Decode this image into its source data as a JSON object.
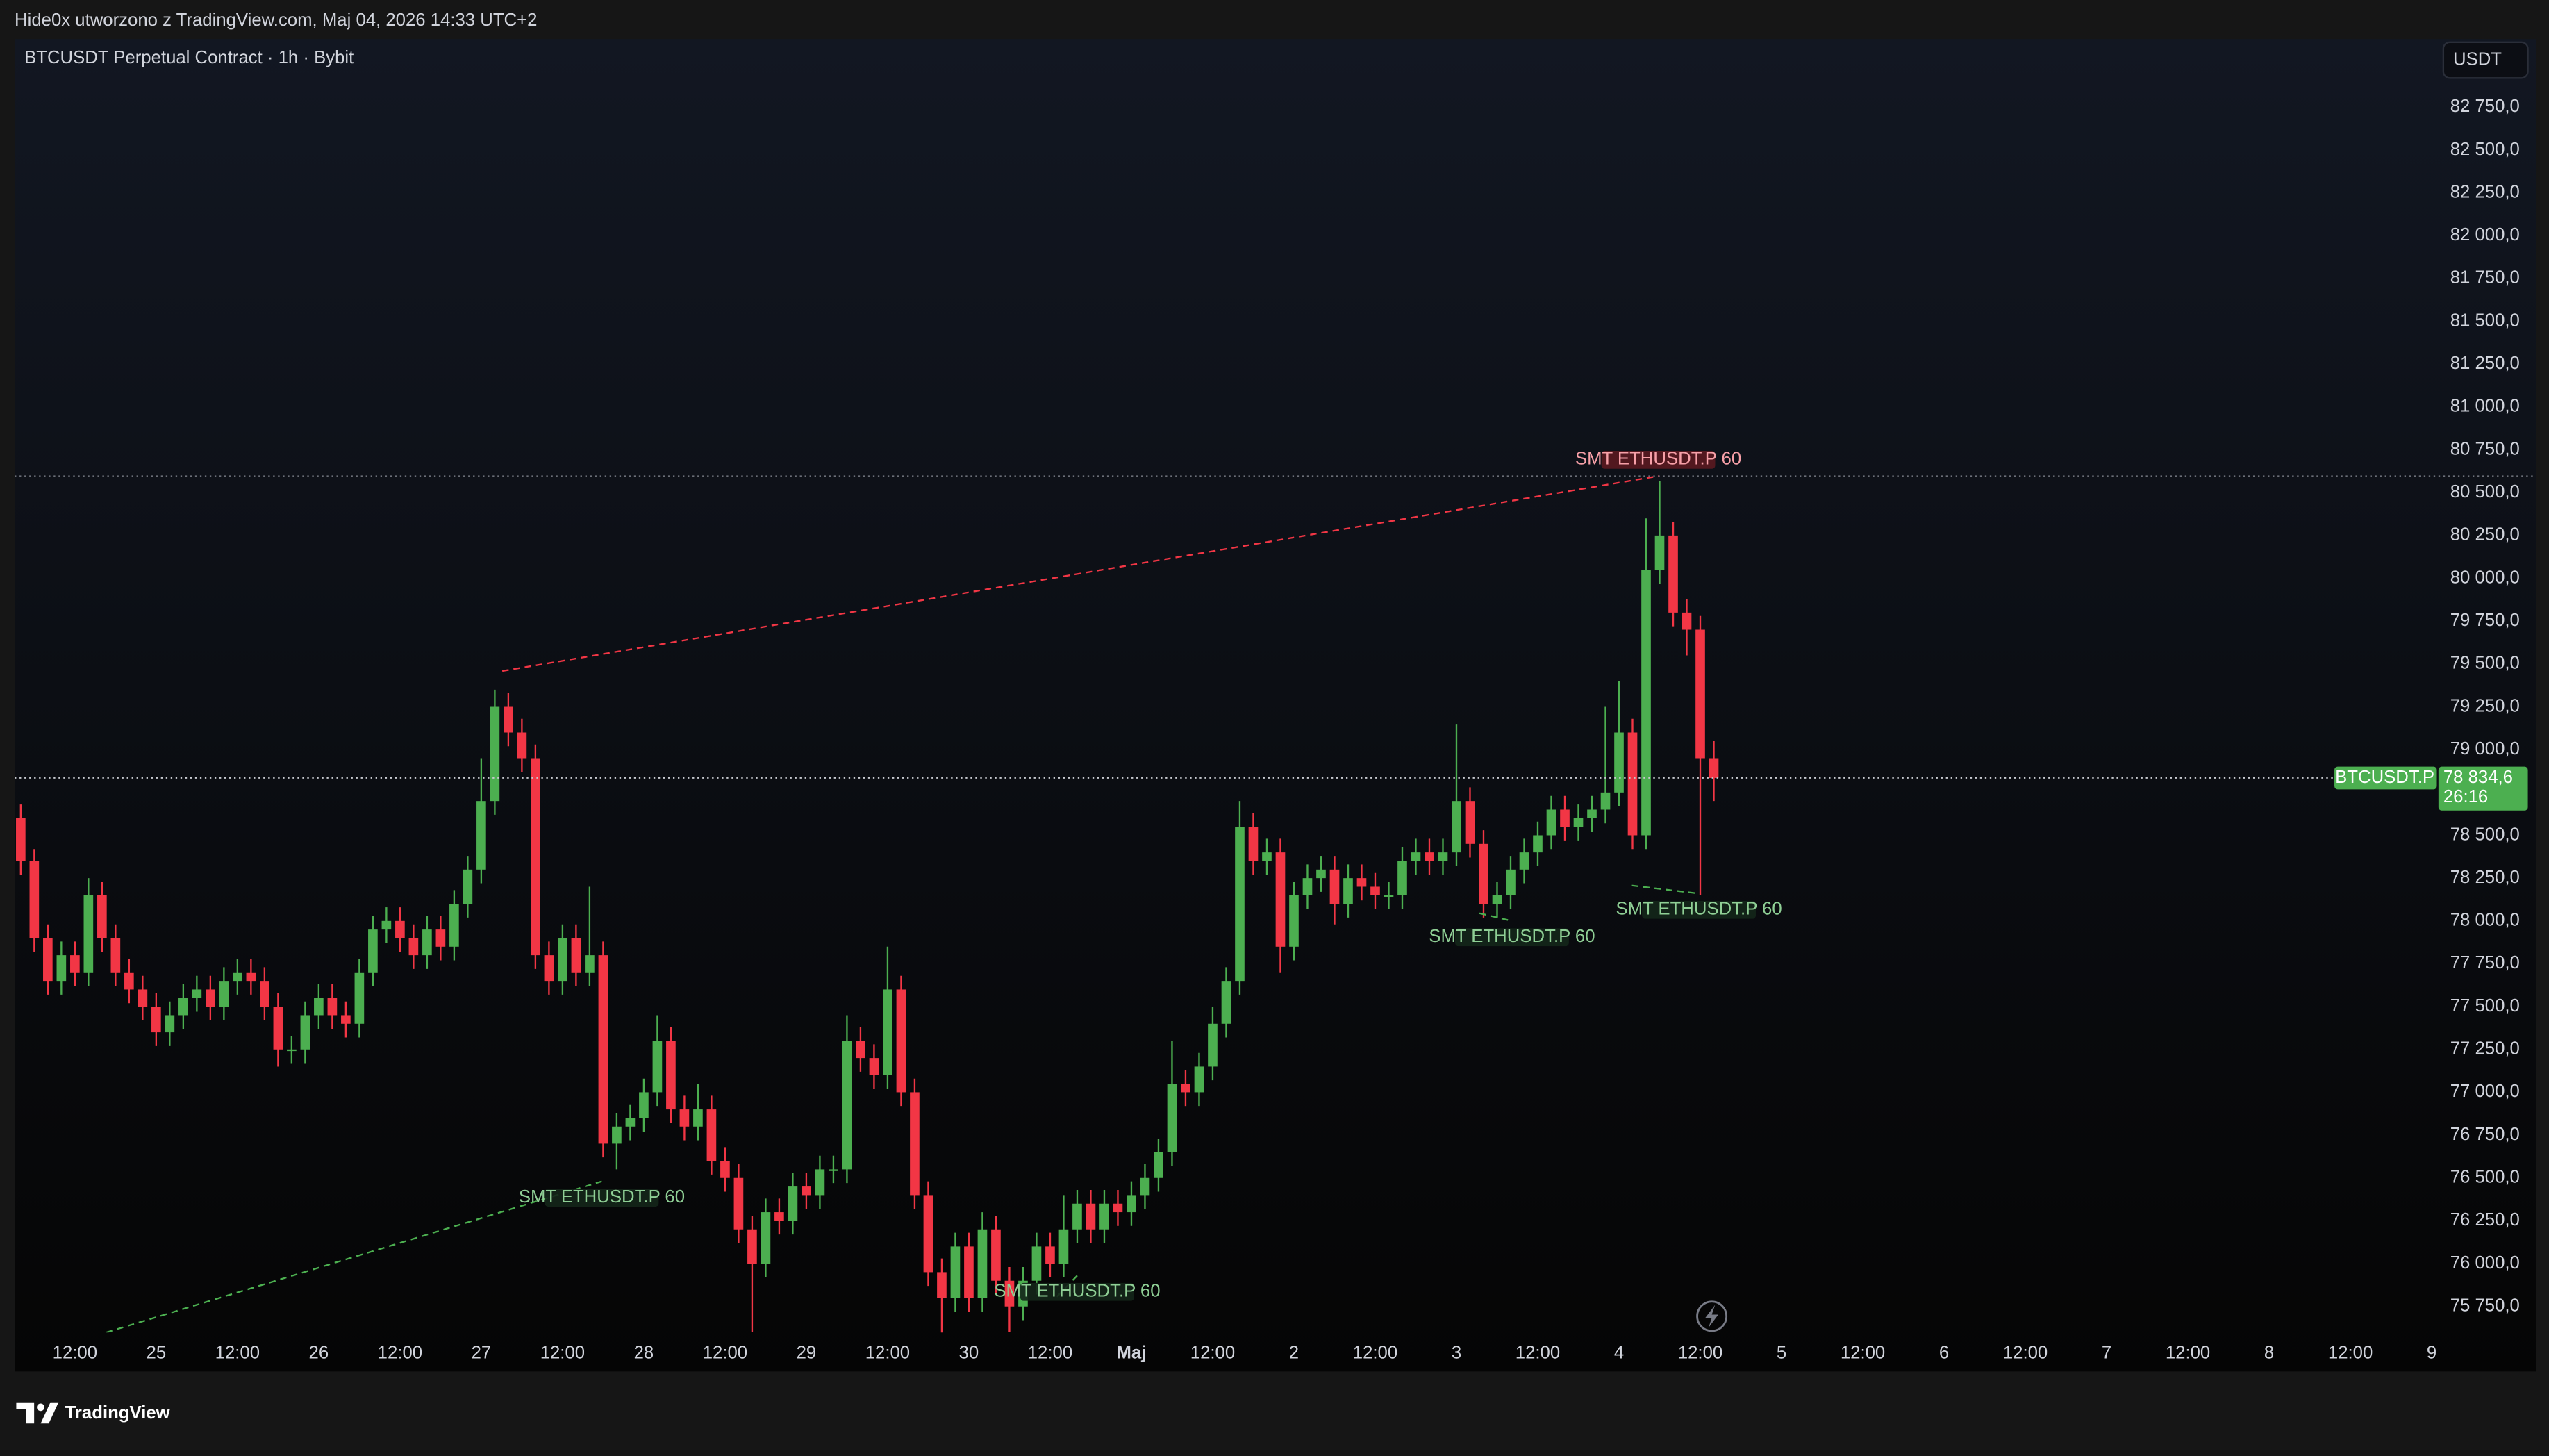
{
  "header": {
    "attribution": "Hide0x utworzono z TradingView.com, Maj 04, 2026 14:33 UTC+2"
  },
  "toolbar": {
    "currency": "USDT"
  },
  "footer": {
    "brand": "TradingView"
  },
  "chart_data": {
    "type": "candlestick",
    "title": "BTCUSDT Perpetual Contract · 1h · Bybit",
    "series_name": "BTCUSDT.P",
    "last_value_label": "78 834,6",
    "countdown": "26:16",
    "up_color": "#4caf50",
    "down_color": "#f23645",
    "xlim": [
      3.1,
      361
    ],
    "xticks": [
      {
        "value": 12,
        "label": "12:00"
      },
      {
        "value": 24,
        "label": "25"
      },
      {
        "value": 36,
        "label": "12:00"
      },
      {
        "value": 48,
        "label": "26"
      },
      {
        "value": 60,
        "label": "12:00"
      },
      {
        "value": 72,
        "label": "27"
      },
      {
        "value": 84,
        "label": "12:00"
      },
      {
        "value": 96,
        "label": "28"
      },
      {
        "value": 108,
        "label": "12:00"
      },
      {
        "value": 120,
        "label": "29"
      },
      {
        "value": 132,
        "label": "12:00"
      },
      {
        "value": 144,
        "label": "30"
      },
      {
        "value": 156,
        "label": "12:00"
      },
      {
        "value": 168,
        "label": "Maj"
      },
      {
        "value": 180,
        "label": "12:00"
      },
      {
        "value": 192,
        "label": "2"
      },
      {
        "value": 204,
        "label": "12:00"
      },
      {
        "value": 216,
        "label": "3"
      },
      {
        "value": 228,
        "label": "12:00"
      },
      {
        "value": 240,
        "label": "4"
      },
      {
        "value": 252,
        "label": "12:00"
      },
      {
        "value": 264,
        "label": "5"
      },
      {
        "value": 276,
        "label": "12:00"
      },
      {
        "value": 288,
        "label": "6"
      },
      {
        "value": 300,
        "label": "12:00"
      },
      {
        "value": 312,
        "label": "7"
      },
      {
        "value": 324,
        "label": "12:00"
      },
      {
        "value": 336,
        "label": "8"
      },
      {
        "value": 348,
        "label": "12:00"
      },
      {
        "value": 360,
        "label": "9"
      }
    ],
    "ylim": [
      75598,
      83148
    ],
    "yticks": [
      {
        "value": 75750,
        "label": "75 750,0"
      },
      {
        "value": 76000,
        "label": "76 000,0"
      },
      {
        "value": 76250,
        "label": "76 250,0"
      },
      {
        "value": 76500,
        "label": "76 500,0"
      },
      {
        "value": 76750,
        "label": "76 750,0"
      },
      {
        "value": 77000,
        "label": "77 000,0"
      },
      {
        "value": 77250,
        "label": "77 250,0"
      },
      {
        "value": 77500,
        "label": "77 500,0"
      },
      {
        "value": 77750,
        "label": "77 750,0"
      },
      {
        "value": 78000,
        "label": "78 000,0"
      },
      {
        "value": 78250,
        "label": "78 250,0"
      },
      {
        "value": 78500,
        "label": "78 500,0"
      },
      {
        "value": 79000,
        "label": "79 000,0"
      },
      {
        "value": 79250,
        "label": "79 250,0"
      },
      {
        "value": 79500,
        "label": "79 500,0"
      },
      {
        "value": 79750,
        "label": "79 750,0"
      },
      {
        "value": 80000,
        "label": "80 000,0"
      },
      {
        "value": 80250,
        "label": "80 250,0"
      },
      {
        "value": 80500,
        "label": "80 500,0"
      },
      {
        "value": 80750,
        "label": "80 750,0"
      },
      {
        "value": 81000,
        "label": "81 000,0"
      },
      {
        "value": 81250,
        "label": "81 250,0"
      },
      {
        "value": 81500,
        "label": "81 500,0"
      },
      {
        "value": 81750,
        "label": "81 750,0"
      },
      {
        "value": 82000,
        "label": "82 000,0"
      },
      {
        "value": 82250,
        "label": "82 250,0"
      },
      {
        "value": 82500,
        "label": "82 500,0"
      },
      {
        "value": 82750,
        "label": "82 750,0"
      }
    ],
    "level_lines": [
      80597
    ],
    "divergences": [
      {
        "label": "SMT ETHUSDT.P 60",
        "color": "#f23645",
        "x": [
          75.1,
          245.8
        ],
        "y": [
          79459,
          80597
        ]
      },
      {
        "label": "SMT ETHUSDT.P 60",
        "color": "#4caf50",
        "x": [
          16.6,
          89.8
        ],
        "y": [
          75598,
          76480
        ]
      },
      {
        "label": "SMT ETHUSDT.P 60",
        "color": "#4caf50",
        "x": [
          157,
          160
        ],
        "y": [
          75807,
          75930
        ]
      },
      {
        "label": "SMT ETHUSDT.P 60",
        "color": "#4caf50",
        "x": [
          219.4,
          224.2
        ],
        "y": [
          78045,
          78000
        ]
      },
      {
        "label": "SMT ETHUSDT.P 60",
        "color": "#4caf50",
        "x": [
          241.9,
          251.8
        ],
        "y": [
          78207,
          78160
        ]
      }
    ],
    "x": [
      4,
      6,
      8,
      10,
      12,
      14,
      16,
      18,
      20,
      22,
      24,
      26,
      28,
      30,
      32,
      34,
      36,
      38,
      40,
      42,
      44,
      46,
      48,
      50,
      52,
      54,
      56,
      58,
      60,
      62,
      64,
      66,
      68,
      70,
      72,
      74,
      76,
      78,
      80,
      82,
      84,
      86,
      88,
      90,
      92,
      94,
      96,
      98,
      100,
      102,
      104,
      106,
      108,
      110,
      112,
      114,
      116,
      118,
      120,
      122,
      124,
      126,
      128,
      130,
      132,
      134,
      136,
      138,
      140,
      142,
      144,
      146,
      148,
      150,
      152,
      154,
      156,
      158,
      160,
      162,
      164,
      166,
      168,
      170,
      172,
      174,
      176,
      178,
      180,
      182,
      184,
      186,
      188,
      190,
      192,
      194,
      196,
      198,
      200,
      202,
      204,
      206,
      208,
      210,
      212,
      214,
      216,
      218,
      220,
      222,
      224,
      226,
      228,
      230,
      232,
      234,
      236,
      238,
      240,
      242,
      244,
      246,
      248,
      250,
      252,
      254
    ],
    "ohlc": [
      [
        78600,
        78680,
        78270,
        78350
      ],
      [
        78350,
        78420,
        77820,
        77900
      ],
      [
        77900,
        77980,
        77570,
        77650
      ],
      [
        77650,
        77880,
        77570,
        77800
      ],
      [
        77800,
        77880,
        77620,
        77700
      ],
      [
        77700,
        78250,
        77620,
        78150
      ],
      [
        78150,
        78230,
        77820,
        77900
      ],
      [
        77900,
        77980,
        77620,
        77700
      ],
      [
        77700,
        77780,
        77520,
        77600
      ],
      [
        77600,
        77680,
        77420,
        77500
      ],
      [
        77500,
        77580,
        77270,
        77350
      ],
      [
        77350,
        77530,
        77270,
        77450
      ],
      [
        77450,
        77630,
        77370,
        77550
      ],
      [
        77550,
        77680,
        77470,
        77600
      ],
      [
        77600,
        77680,
        77420,
        77500
      ],
      [
        77500,
        77730,
        77420,
        77650
      ],
      [
        77650,
        77780,
        77570,
        77700
      ],
      [
        77700,
        77780,
        77570,
        77650
      ],
      [
        77650,
        77730,
        77420,
        77500
      ],
      [
        77500,
        77580,
        77150,
        77250
      ],
      [
        77250,
        77330,
        77170,
        77250
      ],
      [
        77250,
        77530,
        77170,
        77450
      ],
      [
        77450,
        77630,
        77370,
        77550
      ],
      [
        77550,
        77630,
        77370,
        77450
      ],
      [
        77450,
        77530,
        77320,
        77400
      ],
      [
        77400,
        77780,
        77320,
        77700
      ],
      [
        77700,
        78030,
        77620,
        77950
      ],
      [
        77950,
        78080,
        77870,
        78000
      ],
      [
        78000,
        78080,
        77820,
        77900
      ],
      [
        77900,
        77980,
        77720,
        77800
      ],
      [
        77800,
        78030,
        77720,
        77950
      ],
      [
        77950,
        78030,
        77770,
        77850
      ],
      [
        77850,
        78180,
        77770,
        78100
      ],
      [
        78100,
        78380,
        78020,
        78300
      ],
      [
        78300,
        78950,
        78220,
        78700
      ],
      [
        78700,
        79350,
        78620,
        79250
      ],
      [
        79250,
        79330,
        79020,
        79100
      ],
      [
        79100,
        79180,
        78870,
        78950
      ],
      [
        78950,
        79030,
        77720,
        77800
      ],
      [
        77800,
        77880,
        77570,
        77650
      ],
      [
        77650,
        77980,
        77570,
        77900
      ],
      [
        77900,
        77980,
        77620,
        77700
      ],
      [
        77700,
        78200,
        77620,
        77800
      ],
      [
        77800,
        77880,
        76620,
        76700
      ],
      [
        76700,
        76880,
        76550,
        76800
      ],
      [
        76800,
        76930,
        76720,
        76850
      ],
      [
        76850,
        77080,
        76770,
        77000
      ],
      [
        77000,
        77450,
        76920,
        77300
      ],
      [
        77300,
        77380,
        76820,
        76900
      ],
      [
        76900,
        76980,
        76720,
        76800
      ],
      [
        76800,
        77050,
        76720,
        76900
      ],
      [
        76900,
        76980,
        76520,
        76600
      ],
      [
        76600,
        76680,
        76420,
        76500
      ],
      [
        76500,
        76580,
        76120,
        76200
      ],
      [
        76200,
        76280,
        75600,
        76000
      ],
      [
        76000,
        76380,
        75920,
        76300
      ],
      [
        76300,
        76380,
        76170,
        76250
      ],
      [
        76250,
        76530,
        76170,
        76450
      ],
      [
        76450,
        76530,
        76320,
        76400
      ],
      [
        76400,
        76630,
        76320,
        76550
      ],
      [
        76550,
        76630,
        76470,
        76550
      ],
      [
        76550,
        77450,
        76470,
        77300
      ],
      [
        77300,
        77380,
        77120,
        77200
      ],
      [
        77200,
        77280,
        77020,
        77100
      ],
      [
        77100,
        77850,
        77020,
        77600
      ],
      [
        77600,
        77680,
        76920,
        77000
      ],
      [
        77000,
        77080,
        76320,
        76400
      ],
      [
        76400,
        76480,
        75870,
        75950
      ],
      [
        75950,
        76030,
        75550,
        75800
      ],
      [
        75800,
        76180,
        75720,
        76100
      ],
      [
        76100,
        76180,
        75720,
        75800
      ],
      [
        75800,
        76300,
        75720,
        76200
      ],
      [
        76200,
        76280,
        75820,
        75900
      ],
      [
        75900,
        75980,
        75600,
        75750
      ],
      [
        75750,
        75980,
        75670,
        75900
      ],
      [
        75900,
        76180,
        75820,
        76100
      ],
      [
        76100,
        76180,
        75920,
        76000
      ],
      [
        76000,
        76400,
        75920,
        76200
      ],
      [
        76200,
        76430,
        76120,
        76350
      ],
      [
        76350,
        76430,
        76120,
        76200
      ],
      [
        76200,
        76430,
        76120,
        76350
      ],
      [
        76350,
        76430,
        76220,
        76300
      ],
      [
        76300,
        76480,
        76220,
        76400
      ],
      [
        76400,
        76580,
        76320,
        76500
      ],
      [
        76500,
        76730,
        76420,
        76650
      ],
      [
        76650,
        77300,
        76570,
        77050
      ],
      [
        77050,
        77130,
        76920,
        77000
      ],
      [
        77000,
        77230,
        76920,
        77150
      ],
      [
        77150,
        77500,
        77070,
        77400
      ],
      [
        77400,
        77730,
        77320,
        77650
      ],
      [
        77650,
        78700,
        77570,
        78550
      ],
      [
        78550,
        78630,
        78270,
        78350
      ],
      [
        78350,
        78480,
        78270,
        78400
      ],
      [
        78400,
        78480,
        77700,
        77850
      ],
      [
        77850,
        78230,
        77770,
        78150
      ],
      [
        78150,
        78330,
        78070,
        78250
      ],
      [
        78250,
        78380,
        78170,
        78300
      ],
      [
        78300,
        78380,
        77980,
        78100
      ],
      [
        78100,
        78330,
        78020,
        78250
      ],
      [
        78250,
        78330,
        78120,
        78200
      ],
      [
        78200,
        78280,
        78070,
        78150
      ],
      [
        78150,
        78230,
        78070,
        78150
      ],
      [
        78150,
        78430,
        78070,
        78350
      ],
      [
        78350,
        78480,
        78270,
        78400
      ],
      [
        78400,
        78480,
        78270,
        78350
      ],
      [
        78350,
        78480,
        78270,
        78400
      ],
      [
        78400,
        79150,
        78320,
        78700
      ],
      [
        78700,
        78780,
        78370,
        78450
      ],
      [
        78450,
        78530,
        78020,
        78100
      ],
      [
        78100,
        78230,
        78020,
        78150
      ],
      [
        78150,
        78380,
        78070,
        78300
      ],
      [
        78300,
        78480,
        78220,
        78400
      ],
      [
        78400,
        78580,
        78320,
        78500
      ],
      [
        78500,
        78730,
        78420,
        78650
      ],
      [
        78650,
        78730,
        78470,
        78550
      ],
      [
        78550,
        78680,
        78470,
        78600
      ],
      [
        78600,
        78730,
        78520,
        78650
      ],
      [
        78650,
        79250,
        78570,
        78750
      ],
      [
        78750,
        79400,
        78670,
        79100
      ],
      [
        79100,
        79180,
        78420,
        78500
      ],
      [
        78500,
        80350,
        78420,
        80050
      ],
      [
        80050,
        80570,
        79970,
        80250
      ],
      [
        80250,
        80330,
        79720,
        79800
      ],
      [
        79800,
        79880,
        79550,
        79700
      ],
      [
        79700,
        79780,
        78150,
        78950
      ],
      [
        78950,
        79050,
        78700,
        78834.6
      ]
    ]
  }
}
